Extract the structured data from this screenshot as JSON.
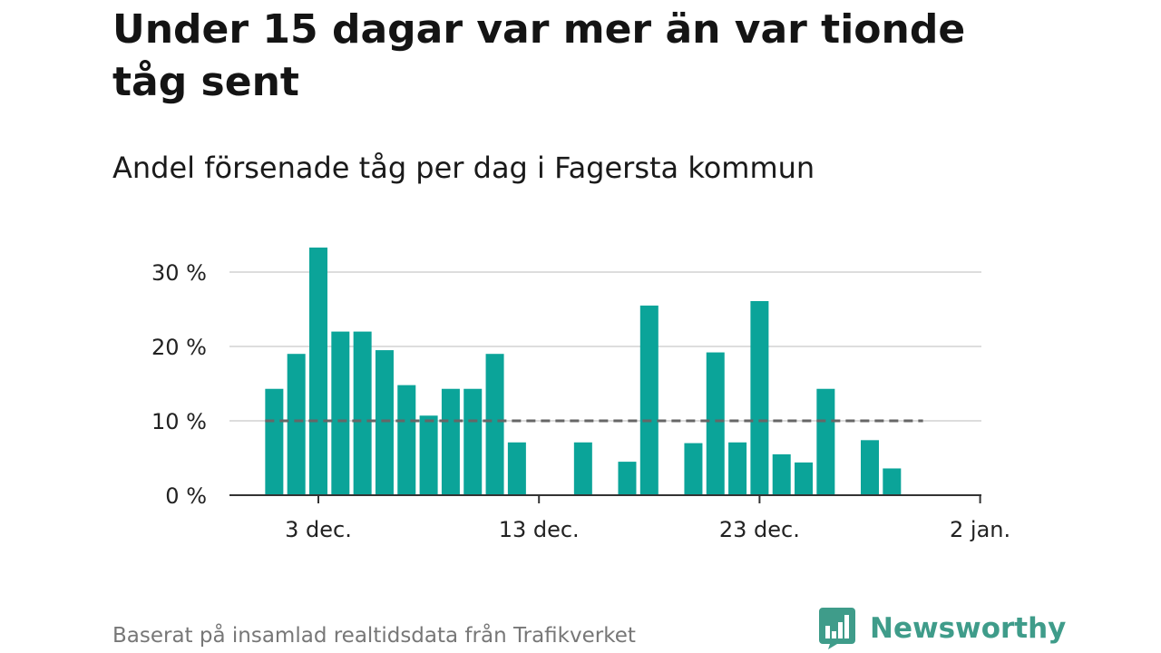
{
  "title": "Under 15 dagar var mer än var tionde tåg sent",
  "subtitle": "Andel försenade tåg per dag i Fagersta kommun",
  "source": "Baserat på insamlad realtidsdata från Trafikverket",
  "brand": {
    "name": "Newsworthy",
    "icon": "bar-chart-speech-bubble-icon",
    "color": "#3f9c8a"
  },
  "colors": {
    "bar": "#0ba499",
    "reference_line": "#666666",
    "grid": "#dddddd",
    "axis": "#333333"
  },
  "chart_data": {
    "type": "bar",
    "x": [
      "2018-12-01",
      "2018-12-02",
      "2018-12-03",
      "2018-12-04",
      "2018-12-05",
      "2018-12-06",
      "2018-12-07",
      "2018-12-08",
      "2018-12-09",
      "2018-12-10",
      "2018-12-11",
      "2018-12-12",
      "2018-12-13",
      "2018-12-14",
      "2018-12-15",
      "2018-12-16",
      "2018-12-17",
      "2018-12-18",
      "2018-12-19",
      "2018-12-20",
      "2018-12-21",
      "2018-12-22",
      "2018-12-23",
      "2018-12-24",
      "2018-12-25",
      "2018-12-26",
      "2018-12-27",
      "2018-12-28",
      "2018-12-29",
      "2018-12-30"
    ],
    "values": [
      14.3,
      19.0,
      33.3,
      22.0,
      22.0,
      19.5,
      14.8,
      10.7,
      14.3,
      14.3,
      19.0,
      7.1,
      0,
      0,
      7.1,
      0,
      4.5,
      25.5,
      0,
      7.0,
      19.2,
      7.1,
      26.1,
      5.5,
      4.4,
      14.3,
      0,
      7.4,
      3.6,
      0
    ],
    "ylim": [
      0,
      30
    ],
    "yticks": [
      0,
      10,
      20,
      30
    ],
    "ytick_labels": [
      "0 %",
      "10 %",
      "20 %",
      "30 %"
    ],
    "xtick_labels": [
      "3 dec.",
      "13 dec.",
      "23 dec.",
      "2 jan."
    ],
    "xtick_dates": [
      "2018-12-03",
      "2018-12-13",
      "2018-12-23",
      "2019-01-02"
    ],
    "reference_line": {
      "value": 10,
      "from": "2018-12-01",
      "to": "2018-12-30",
      "style": "dashed"
    },
    "grid": true
  }
}
